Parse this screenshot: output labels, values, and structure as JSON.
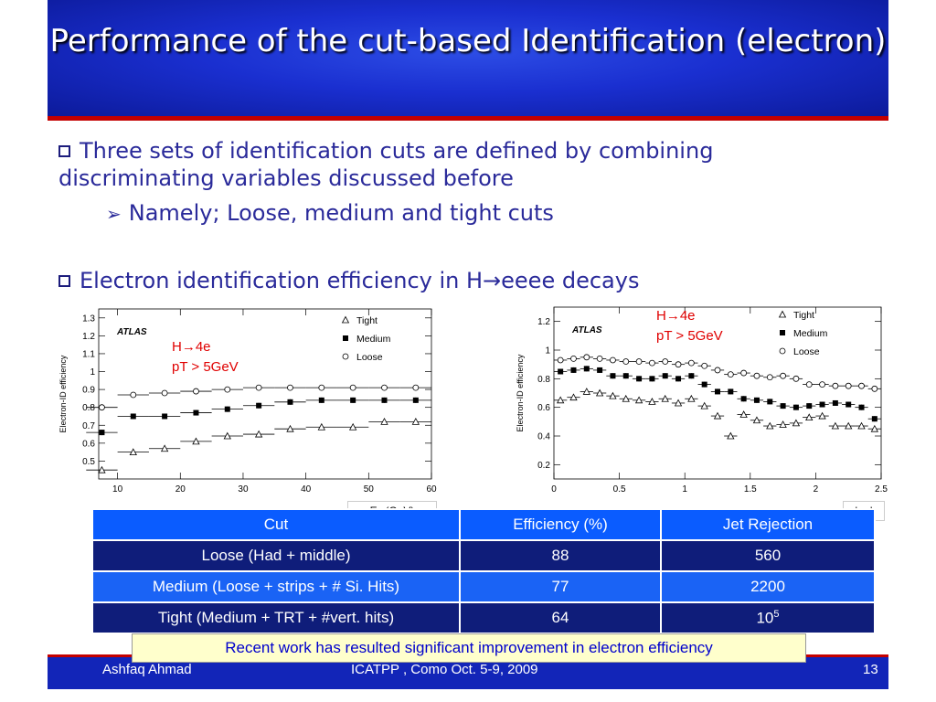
{
  "title": "Performance of the cut-based Identification (electron)",
  "bullets": {
    "b1": "Three sets of identification cuts are defined by combining discriminating variables discussed before",
    "b1_sub": "Namely; Loose, medium and tight cuts",
    "b2": "Electron identification efficiency in H→eeee decays"
  },
  "chart_data": [
    {
      "type": "scatter",
      "ylabel": "Electron-ID efficiency",
      "xlabel": "E_T (GeV)",
      "xlim": [
        7,
        60
      ],
      "ylim": [
        0.4,
        1.35
      ],
      "xticks": [
        "10",
        "20",
        "30",
        "40",
        "50",
        "60"
      ],
      "yticks": [
        "0.5",
        "0.6",
        "0.7",
        "0.8",
        "0.9",
        "1",
        "1.1",
        "1.2",
        "1.3"
      ],
      "annotation_process": "H→4e",
      "annotation_cut": "pT > 5GeV",
      "logo": "ATLAS",
      "legend": [
        "Tight",
        "Medium",
        "Loose"
      ],
      "x": [
        7.5,
        12.5,
        17.5,
        22.5,
        27.5,
        32.5,
        37.5,
        42.5,
        47.5,
        52.5,
        57.5
      ],
      "series": [
        {
          "name": "Tight",
          "values": [
            0.45,
            0.55,
            0.57,
            0.61,
            0.64,
            0.65,
            0.68,
            0.69,
            0.69,
            0.72,
            0.72
          ]
        },
        {
          "name": "Medium",
          "values": [
            0.66,
            0.75,
            0.75,
            0.77,
            0.79,
            0.81,
            0.83,
            0.84,
            0.84,
            0.84,
            0.84
          ]
        },
        {
          "name": "Loose",
          "values": [
            0.8,
            0.87,
            0.88,
            0.89,
            0.9,
            0.91,
            0.91,
            0.91,
            0.91,
            0.91,
            0.91
          ]
        }
      ]
    },
    {
      "type": "scatter",
      "ylabel": "Electron-ID efficiency",
      "xlabel": "| η |",
      "xlim": [
        0,
        2.5
      ],
      "ylim": [
        0.1,
        1.3
      ],
      "xticks": [
        "0",
        "0.5",
        "1",
        "1.5",
        "2",
        "2.5"
      ],
      "yticks": [
        "0.2",
        "0.4",
        "0.6",
        "0.8",
        "1",
        "1.2"
      ],
      "annotation_process": "H→4e",
      "annotation_cut": "pT > 5GeV",
      "logo": "ATLAS",
      "legend": [
        "Tight",
        "Medium",
        "Loose"
      ],
      "x": [
        0.05,
        0.15,
        0.25,
        0.35,
        0.45,
        0.55,
        0.65,
        0.75,
        0.85,
        0.95,
        1.05,
        1.15,
        1.25,
        1.35,
        1.45,
        1.55,
        1.65,
        1.75,
        1.85,
        1.95,
        2.05,
        2.15,
        2.25,
        2.35,
        2.45
      ],
      "series": [
        {
          "name": "Tight",
          "values": [
            0.65,
            0.67,
            0.71,
            0.7,
            0.68,
            0.66,
            0.65,
            0.64,
            0.66,
            0.63,
            0.66,
            0.61,
            0.54,
            0.4,
            0.55,
            0.51,
            0.47,
            0.48,
            0.49,
            0.53,
            0.54,
            0.47,
            0.47,
            0.47,
            0.45
          ]
        },
        {
          "name": "Medium",
          "values": [
            0.85,
            0.86,
            0.87,
            0.86,
            0.82,
            0.82,
            0.8,
            0.8,
            0.82,
            0.8,
            0.82,
            0.76,
            0.71,
            0.71,
            0.66,
            0.65,
            0.64,
            0.61,
            0.6,
            0.61,
            0.62,
            0.63,
            0.62,
            0.6,
            0.52
          ]
        },
        {
          "name": "Loose",
          "values": [
            0.93,
            0.94,
            0.95,
            0.94,
            0.93,
            0.92,
            0.92,
            0.91,
            0.92,
            0.9,
            0.91,
            0.89,
            0.86,
            0.83,
            0.84,
            0.82,
            0.81,
            0.82,
            0.8,
            0.76,
            0.76,
            0.75,
            0.75,
            0.75,
            0.73
          ]
        }
      ]
    }
  ],
  "axis_labels": {
    "left_x": "E",
    "left_x_sub": "T",
    "left_x_unit": " (GeV)",
    "right_x": "| η |"
  },
  "table": {
    "headers": [
      "Cut",
      "Efficiency (%)",
      "Jet Rejection"
    ],
    "rows": [
      [
        "Loose (Had + middle)",
        "88",
        "560"
      ],
      [
        "Medium (Loose + strips + # Si. Hits)",
        "77",
        "2200"
      ],
      [
        "Tight (Medium + TRT + #vert. hits)",
        "64",
        "10"
      ]
    ],
    "tight_rejection_exp": "5"
  },
  "note": "Recent work has resulted significant improvement in electron efficiency",
  "footer": {
    "author": "Ashfaq Ahmad",
    "conference": "ICATPP , Como Oct.  5-9, 2009",
    "page": "13"
  }
}
